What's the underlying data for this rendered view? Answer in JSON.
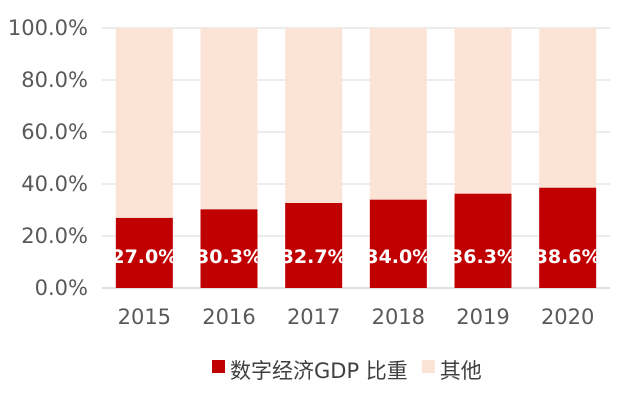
{
  "chart_data": {
    "type": "bar",
    "stacked": true,
    "categories": [
      "2015",
      "2016",
      "2017",
      "2018",
      "2019",
      "2020"
    ],
    "series": [
      {
        "name": "数字经济GDP 比重",
        "values": [
          27.0,
          30.3,
          32.7,
          34.0,
          36.3,
          38.6
        ],
        "color": "#c00000"
      },
      {
        "name": "其他",
        "values": [
          73.0,
          69.7,
          67.3,
          66.0,
          63.7,
          61.4
        ],
        "color": "#fbe3d6"
      }
    ],
    "data_labels": [
      "27.0%",
      "30.3%",
      "32.7%",
      "34.0%",
      "36.3%",
      "38.6%"
    ],
    "y_ticks": [
      "0.0%",
      "20.0%",
      "40.0%",
      "60.0%",
      "80.0%",
      "100.0%"
    ],
    "ylim": [
      0,
      100
    ],
    "grid": true,
    "legend_position": "bottom",
    "title": "",
    "xlabel": "",
    "ylabel": ""
  }
}
